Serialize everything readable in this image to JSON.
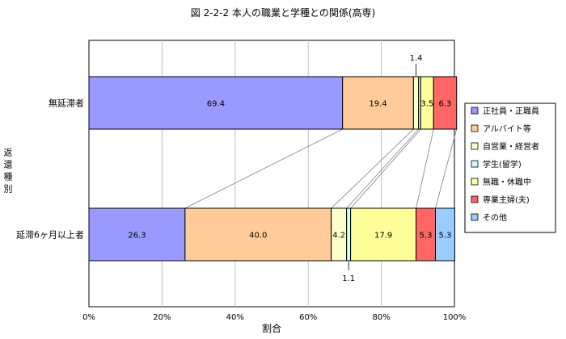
{
  "chart_data": {
    "type": "bar",
    "stacked": true,
    "orientation": "horizontal",
    "percent": true,
    "title": "図 2-2-2  本人の職業と学種との関係(高専)",
    "xlabel": "割合",
    "ylabel": "返還種別",
    "xlim": [
      0,
      100
    ],
    "xticks": [
      "0%",
      "20%",
      "40%",
      "60%",
      "80%",
      "100%"
    ],
    "grid": true,
    "legend_position": "right",
    "categories": [
      "無延滞者",
      "延滞6ヶ月以上者"
    ],
    "series": [
      {
        "name": "正社員・正職員",
        "color": "#9999ff",
        "values": [
          69.4,
          26.3
        ],
        "labels": [
          "69.4",
          "26.3"
        ]
      },
      {
        "name": "アルバイト等",
        "color": "#ffcc99",
        "values": [
          19.4,
          40.0
        ],
        "labels": [
          "19.4",
          "40.0"
        ]
      },
      {
        "name": "自営業・経営者",
        "color": "#ffffcc",
        "values": [
          1.4,
          4.2
        ],
        "labels": [
          "1.4",
          "4.2"
        ]
      },
      {
        "name": "学生(留学)",
        "color": "#ccffff",
        "values": [
          0.6,
          1.1
        ],
        "labels": [
          "",
          "1.1"
        ]
      },
      {
        "name": "無職・休職中",
        "color": "#ffff99",
        "values": [
          3.5,
          17.9
        ],
        "labels": [
          "3.5",
          "17.9"
        ]
      },
      {
        "name": "専業主婦(夫)",
        "color": "#ff6666",
        "values": [
          6.3,
          5.3
        ],
        "labels": [
          "6.3",
          "5.3"
        ]
      },
      {
        "name": "その他",
        "color": "#99ccff",
        "values": [
          0,
          5.3
        ],
        "labels": [
          "",
          "5.3"
        ]
      }
    ]
  }
}
